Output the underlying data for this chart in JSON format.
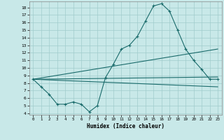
{
  "xlabel": "Humidex (Indice chaleur)",
  "bg_color": "#c8e8e8",
  "grid_color": "#a0cccc",
  "line_color": "#1a6b6b",
  "xlim": [
    -0.5,
    23.5
  ],
  "ylim": [
    3.8,
    18.8
  ],
  "xticks": [
    0,
    1,
    2,
    3,
    4,
    5,
    6,
    7,
    8,
    9,
    10,
    11,
    12,
    13,
    14,
    15,
    16,
    17,
    18,
    19,
    20,
    21,
    22,
    23
  ],
  "yticks": [
    4,
    5,
    6,
    7,
    8,
    9,
    10,
    11,
    12,
    13,
    14,
    15,
    16,
    17,
    18
  ],
  "main_x": [
    0,
    1,
    2,
    3,
    4,
    5,
    6,
    7,
    8,
    9,
    10,
    11,
    12,
    13,
    14,
    15,
    16,
    17,
    18,
    19,
    20,
    21,
    22,
    23
  ],
  "main_y": [
    8.5,
    7.5,
    6.5,
    5.2,
    5.2,
    5.5,
    5.2,
    4.2,
    5.0,
    8.7,
    10.5,
    12.5,
    13.0,
    14.2,
    16.2,
    18.2,
    18.5,
    17.5,
    15.0,
    12.5,
    11.0,
    9.8,
    8.5,
    8.5
  ],
  "line1_x": [
    0,
    23
  ],
  "line1_y": [
    8.5,
    12.5
  ],
  "line2_x": [
    0,
    23
  ],
  "line2_y": [
    8.5,
    8.8
  ],
  "line3_x": [
    0,
    23
  ],
  "line3_y": [
    8.5,
    7.5
  ]
}
